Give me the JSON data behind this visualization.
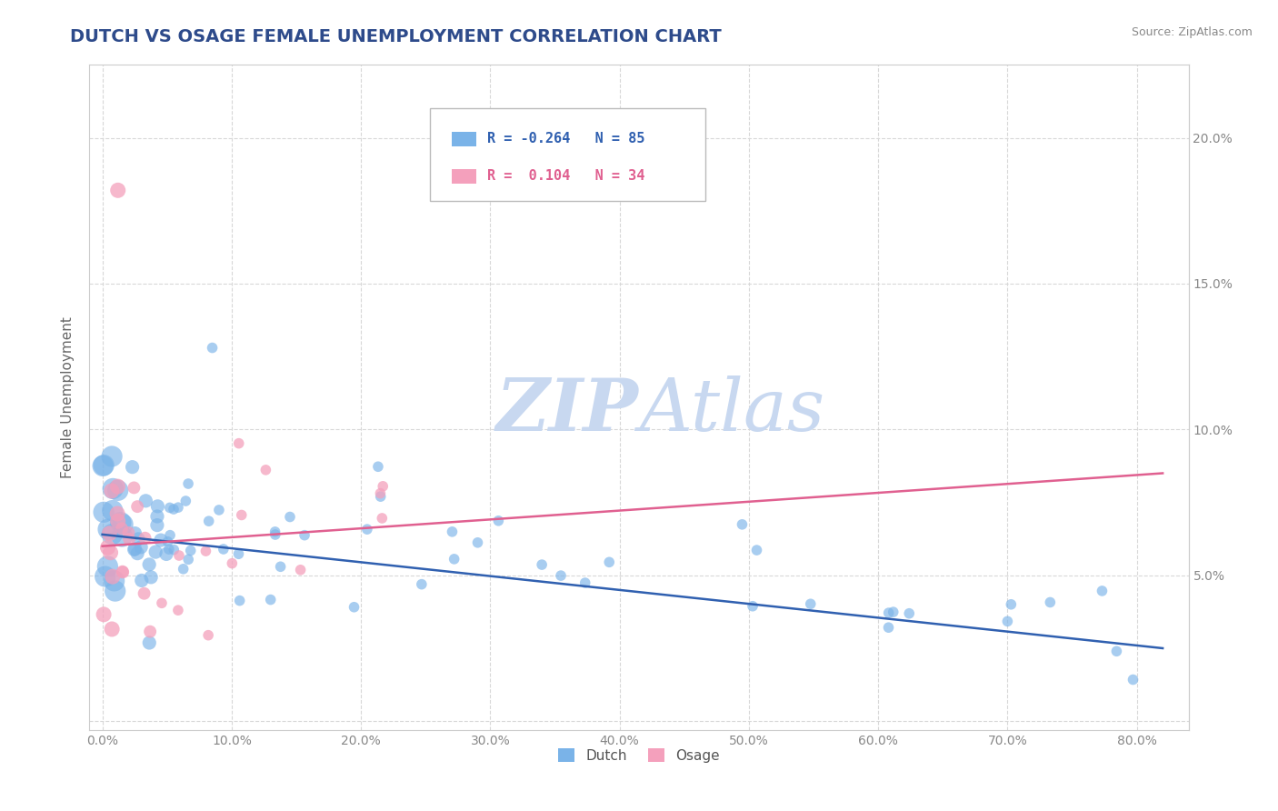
{
  "title": "DUTCH VS OSAGE FEMALE UNEMPLOYMENT CORRELATION CHART",
  "source_text": "Source: ZipAtlas.com",
  "xlabel": "",
  "ylabel": "Female Unemployment",
  "title_color": "#2E4B8B",
  "title_fontsize": 14,
  "background_color": "#ffffff",
  "watermark_text": "ZIPAtlas",
  "watermark_color": "#c8d8f0",
  "dutch_color": "#7ab3e8",
  "osage_color": "#f4a0bc",
  "dutch_line_color": "#3060b0",
  "osage_line_color": "#e06090",
  "legend_dutch_label": "Dutch",
  "legend_osage_label": "Osage",
  "legend_dutch_r": "R = -0.264",
  "legend_osage_r": "R =  0.104",
  "legend_dutch_n": "N = 85",
  "legend_osage_n": "N = 34",
  "xlim": [
    -0.01,
    0.84
  ],
  "ylim": [
    -0.003,
    0.225
  ],
  "xticks": [
    0.0,
    0.1,
    0.2,
    0.3,
    0.4,
    0.5,
    0.6,
    0.7,
    0.8
  ],
  "xtick_labels": [
    "0.0%",
    "10.0%",
    "20.0%",
    "30.0%",
    "40.0%",
    "50.0%",
    "60.0%",
    "70.0%",
    "80.0%"
  ],
  "yticks": [
    0.0,
    0.05,
    0.1,
    0.15,
    0.2
  ],
  "ytick_labels_left": [
    "",
    "",
    "",
    "",
    ""
  ],
  "ytick_labels_right": [
    "",
    "5.0%",
    "10.0%",
    "15.0%",
    "20.0%"
  ],
  "dutch_trendline": {
    "x_start": 0.0,
    "x_end": 0.82,
    "y_start": 0.064,
    "y_end": 0.025
  },
  "osage_trendline": {
    "x_start": 0.0,
    "x_end": 0.82,
    "y_start": 0.06,
    "y_end": 0.085
  },
  "grid_color": "#d8d8d8",
  "grid_style": "--",
  "tick_color": "#888888",
  "tick_fontsize": 10,
  "axis_label_color": "#666666",
  "axis_label_fontsize": 11
}
